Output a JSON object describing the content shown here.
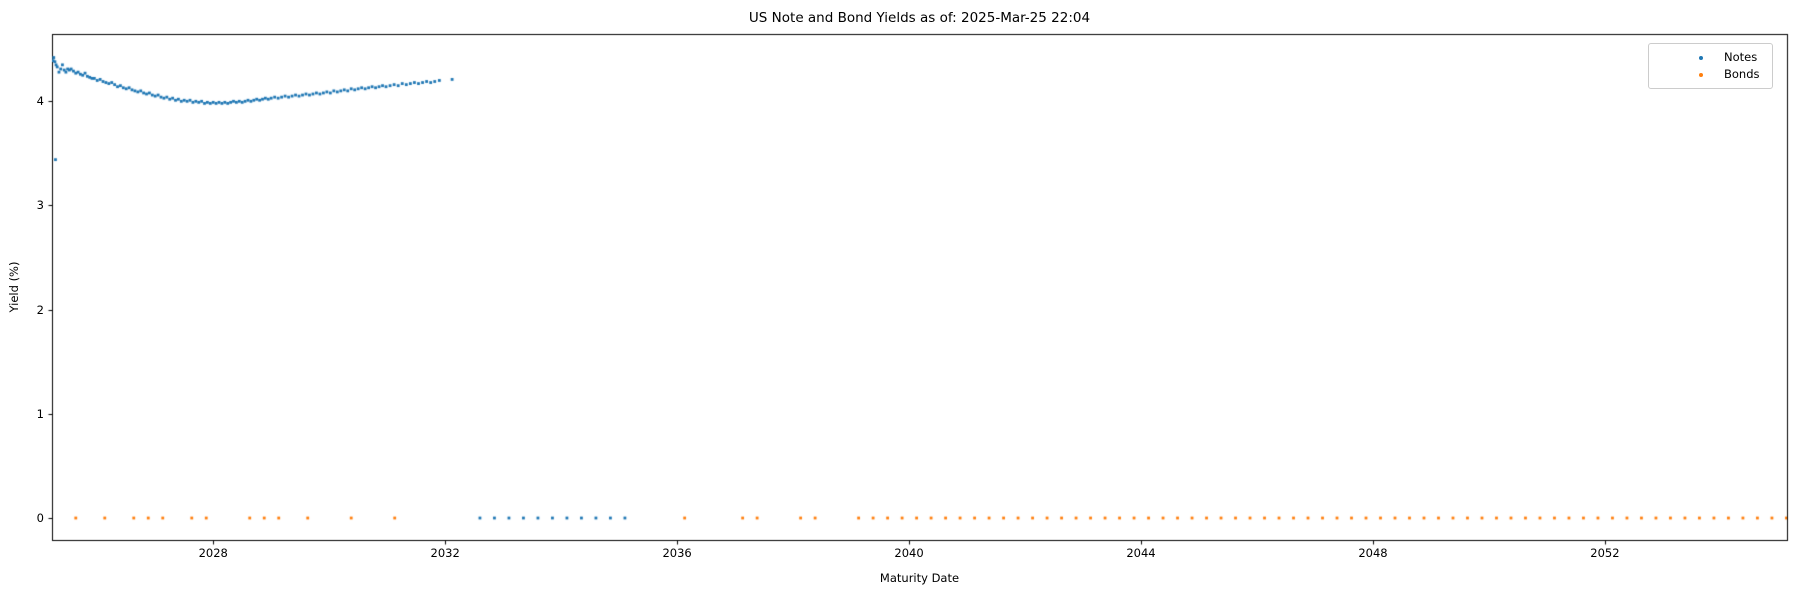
{
  "chart_data": {
    "type": "scatter",
    "title": "US Note and Bond Yields as of: 2025-Mar-25 22:04",
    "xlabel": "Maturity Date",
    "ylabel": "Yield (%)",
    "xlim": [
      2025.22,
      2055.14
    ],
    "ylim": [
      -0.211,
      4.646
    ],
    "xticks": [
      2028,
      2032,
      2036,
      2040,
      2044,
      2048,
      2052
    ],
    "yticks": [
      0,
      1,
      2,
      3,
      4
    ],
    "grid": false,
    "marker_size_px": 2.8,
    "spine_color": "#000000",
    "legend": {
      "position": "upper right",
      "entries": [
        {
          "label": "Notes",
          "color": "#1f77b4"
        },
        {
          "label": "Bonds",
          "color": "#ff7f0e"
        }
      ]
    },
    "series": [
      {
        "name": "Notes",
        "color": "#1f77b4",
        "points": [
          [
            2025.24,
            4.39
          ],
          [
            2025.25,
            4.42
          ],
          [
            2025.27,
            4.38
          ],
          [
            2025.28,
            3.44
          ],
          [
            2025.29,
            4.35
          ],
          [
            2025.31,
            4.33
          ],
          [
            2025.34,
            4.28
          ],
          [
            2025.37,
            4.31
          ],
          [
            2025.4,
            4.35
          ],
          [
            2025.43,
            4.3
          ],
          [
            2025.46,
            4.28
          ],
          [
            2025.49,
            4.31
          ],
          [
            2025.52,
            4.3
          ],
          [
            2025.55,
            4.31
          ],
          [
            2025.59,
            4.29
          ],
          [
            2025.63,
            4.27
          ],
          [
            2025.67,
            4.28
          ],
          [
            2025.71,
            4.26
          ],
          [
            2025.75,
            4.25
          ],
          [
            2025.79,
            4.27
          ],
          [
            2025.83,
            4.24
          ],
          [
            2025.87,
            4.23
          ],
          [
            2025.91,
            4.22
          ],
          [
            2025.95,
            4.22
          ],
          [
            2026.0,
            4.2
          ],
          [
            2026.05,
            4.21
          ],
          [
            2026.1,
            4.19
          ],
          [
            2026.15,
            4.18
          ],
          [
            2026.2,
            4.17
          ],
          [
            2026.25,
            4.18
          ],
          [
            2026.3,
            4.16
          ],
          [
            2026.35,
            4.14
          ],
          [
            2026.4,
            4.15
          ],
          [
            2026.45,
            4.13
          ],
          [
            2026.5,
            4.12
          ],
          [
            2026.55,
            4.13
          ],
          [
            2026.6,
            4.11
          ],
          [
            2026.65,
            4.1
          ],
          [
            2026.7,
            4.09
          ],
          [
            2026.75,
            4.1
          ],
          [
            2026.8,
            4.08
          ],
          [
            2026.85,
            4.07
          ],
          [
            2026.9,
            4.08
          ],
          [
            2026.95,
            4.06
          ],
          [
            2027.0,
            4.05
          ],
          [
            2027.05,
            4.06
          ],
          [
            2027.1,
            4.04
          ],
          [
            2027.15,
            4.03
          ],
          [
            2027.2,
            4.04
          ],
          [
            2027.25,
            4.02
          ],
          [
            2027.3,
            4.03
          ],
          [
            2027.35,
            4.01
          ],
          [
            2027.4,
            4.02
          ],
          [
            2027.45,
            4.0
          ],
          [
            2027.5,
            4.01
          ],
          [
            2027.55,
            4.0
          ],
          [
            2027.6,
            4.01
          ],
          [
            2027.65,
            3.99
          ],
          [
            2027.7,
            4.0
          ],
          [
            2027.75,
            3.99
          ],
          [
            2027.8,
            4.0
          ],
          [
            2027.85,
            3.98
          ],
          [
            2027.9,
            3.99
          ],
          [
            2027.95,
            3.98
          ],
          [
            2028.0,
            3.99
          ],
          [
            2028.05,
            3.98
          ],
          [
            2028.1,
            3.99
          ],
          [
            2028.15,
            3.98
          ],
          [
            2028.2,
            3.99
          ],
          [
            2028.25,
            3.98
          ],
          [
            2028.3,
            3.99
          ],
          [
            2028.35,
            4.0
          ],
          [
            2028.4,
            3.99
          ],
          [
            2028.45,
            4.0
          ],
          [
            2028.5,
            3.99
          ],
          [
            2028.55,
            4.0
          ],
          [
            2028.6,
            4.01
          ],
          [
            2028.65,
            4.0
          ],
          [
            2028.7,
            4.01
          ],
          [
            2028.75,
            4.02
          ],
          [
            2028.8,
            4.01
          ],
          [
            2028.85,
            4.02
          ],
          [
            2028.9,
            4.03
          ],
          [
            2028.95,
            4.02
          ],
          [
            2029.0,
            4.03
          ],
          [
            2029.06,
            4.04
          ],
          [
            2029.12,
            4.03
          ],
          [
            2029.18,
            4.04
          ],
          [
            2029.24,
            4.05
          ],
          [
            2029.3,
            4.04
          ],
          [
            2029.36,
            4.05
          ],
          [
            2029.42,
            4.06
          ],
          [
            2029.48,
            4.05
          ],
          [
            2029.54,
            4.06
          ],
          [
            2029.6,
            4.07
          ],
          [
            2029.66,
            4.06
          ],
          [
            2029.72,
            4.07
          ],
          [
            2029.78,
            4.08
          ],
          [
            2029.84,
            4.07
          ],
          [
            2029.9,
            4.08
          ],
          [
            2029.96,
            4.09
          ],
          [
            2030.02,
            4.08
          ],
          [
            2030.08,
            4.1
          ],
          [
            2030.14,
            4.09
          ],
          [
            2030.2,
            4.1
          ],
          [
            2030.26,
            4.11
          ],
          [
            2030.32,
            4.1
          ],
          [
            2030.38,
            4.12
          ],
          [
            2030.44,
            4.11
          ],
          [
            2030.5,
            4.12
          ],
          [
            2030.56,
            4.13
          ],
          [
            2030.62,
            4.12
          ],
          [
            2030.68,
            4.13
          ],
          [
            2030.74,
            4.14
          ],
          [
            2030.8,
            4.13
          ],
          [
            2030.86,
            4.14
          ],
          [
            2030.92,
            4.15
          ],
          [
            2030.98,
            4.14
          ],
          [
            2031.05,
            4.15
          ],
          [
            2031.12,
            4.16
          ],
          [
            2031.19,
            4.15
          ],
          [
            2031.26,
            4.17
          ],
          [
            2031.33,
            4.16
          ],
          [
            2031.4,
            4.17
          ],
          [
            2031.47,
            4.18
          ],
          [
            2031.54,
            4.17
          ],
          [
            2031.61,
            4.18
          ],
          [
            2031.68,
            4.19
          ],
          [
            2031.75,
            4.18
          ],
          [
            2031.82,
            4.19
          ],
          [
            2031.9,
            4.2
          ],
          [
            2032.12,
            4.21
          ],
          [
            2032.6,
            0.0
          ],
          [
            2032.85,
            0.0
          ],
          [
            2033.1,
            0.0
          ],
          [
            2033.35,
            0.0
          ],
          [
            2033.6,
            0.0
          ],
          [
            2033.85,
            0.0
          ],
          [
            2034.1,
            0.0
          ],
          [
            2034.35,
            0.0
          ],
          [
            2034.6,
            0.0
          ],
          [
            2034.85,
            0.0
          ],
          [
            2035.1,
            0.0
          ]
        ]
      },
      {
        "name": "Bonds",
        "color": "#ff7f0e",
        "points": [
          [
            2025.63,
            0.0
          ],
          [
            2026.13,
            0.0
          ],
          [
            2026.63,
            0.0
          ],
          [
            2026.88,
            0.0
          ],
          [
            2027.13,
            0.0
          ],
          [
            2027.63,
            0.0
          ],
          [
            2027.88,
            0.0
          ],
          [
            2028.63,
            0.0
          ],
          [
            2028.88,
            0.0
          ],
          [
            2029.13,
            0.0
          ],
          [
            2029.63,
            0.0
          ],
          [
            2030.38,
            0.0
          ],
          [
            2031.13,
            0.0
          ],
          [
            2036.13,
            0.0
          ],
          [
            2037.13,
            0.0
          ],
          [
            2037.38,
            0.0
          ],
          [
            2038.13,
            0.0
          ],
          [
            2038.38,
            0.0
          ],
          [
            2039.13,
            0.0
          ],
          [
            2039.38,
            0.0
          ],
          [
            2039.63,
            0.0
          ],
          [
            2039.88,
            0.0
          ],
          [
            2040.13,
            0.0
          ],
          [
            2040.38,
            0.0
          ],
          [
            2040.63,
            0.0
          ],
          [
            2040.88,
            0.0
          ],
          [
            2041.13,
            0.0
          ],
          [
            2041.38,
            0.0
          ],
          [
            2041.63,
            0.0
          ],
          [
            2041.88,
            0.0
          ],
          [
            2042.13,
            0.0
          ],
          [
            2042.38,
            0.0
          ],
          [
            2042.63,
            0.0
          ],
          [
            2042.88,
            0.0
          ],
          [
            2043.13,
            0.0
          ],
          [
            2043.38,
            0.0
          ],
          [
            2043.63,
            0.0
          ],
          [
            2043.88,
            0.0
          ],
          [
            2044.13,
            0.0
          ],
          [
            2044.38,
            0.0
          ],
          [
            2044.63,
            0.0
          ],
          [
            2044.88,
            0.0
          ],
          [
            2045.13,
            0.0
          ],
          [
            2045.38,
            0.0
          ],
          [
            2045.63,
            0.0
          ],
          [
            2045.88,
            0.0
          ],
          [
            2046.13,
            0.0
          ],
          [
            2046.38,
            0.0
          ],
          [
            2046.63,
            0.0
          ],
          [
            2046.88,
            0.0
          ],
          [
            2047.13,
            0.0
          ],
          [
            2047.38,
            0.0
          ],
          [
            2047.63,
            0.0
          ],
          [
            2047.88,
            0.0
          ],
          [
            2048.13,
            0.0
          ],
          [
            2048.38,
            0.0
          ],
          [
            2048.63,
            0.0
          ],
          [
            2048.88,
            0.0
          ],
          [
            2049.13,
            0.0
          ],
          [
            2049.38,
            0.0
          ],
          [
            2049.63,
            0.0
          ],
          [
            2049.88,
            0.0
          ],
          [
            2050.13,
            0.0
          ],
          [
            2050.38,
            0.0
          ],
          [
            2050.63,
            0.0
          ],
          [
            2050.88,
            0.0
          ],
          [
            2051.13,
            0.0
          ],
          [
            2051.38,
            0.0
          ],
          [
            2051.63,
            0.0
          ],
          [
            2051.88,
            0.0
          ],
          [
            2052.13,
            0.0
          ],
          [
            2052.38,
            0.0
          ],
          [
            2052.63,
            0.0
          ],
          [
            2052.88,
            0.0
          ],
          [
            2053.13,
            0.0
          ],
          [
            2053.38,
            0.0
          ],
          [
            2053.63,
            0.0
          ],
          [
            2053.88,
            0.0
          ],
          [
            2054.13,
            0.0
          ],
          [
            2054.38,
            0.0
          ],
          [
            2054.63,
            0.0
          ],
          [
            2054.88,
            0.0
          ],
          [
            2055.13,
            0.0
          ]
        ]
      }
    ]
  }
}
